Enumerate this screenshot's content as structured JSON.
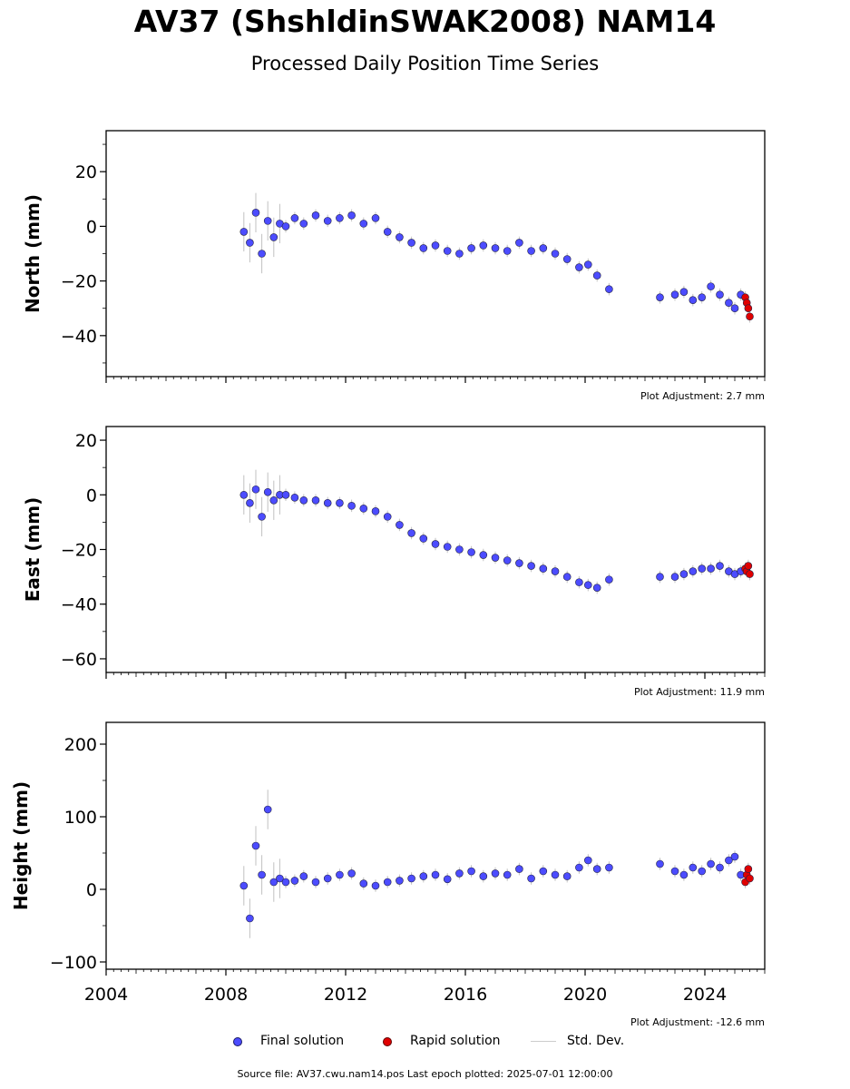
{
  "header": {
    "title": "AV37 (ShshldinSWAK2008) NAM14",
    "subtitle": "Processed Daily Position Time Series"
  },
  "legend": {
    "final": "Final solution",
    "rapid": "Rapid solution",
    "std": "Std. Dev."
  },
  "footer": {
    "source": "Source file: AV37.cwu.nam14.pos  Last epoch plotted: 2025-07-01 12:00:00"
  },
  "colors": {
    "final": "#4c4cff",
    "rapid": "#e00000",
    "std": "#999999"
  },
  "chart_data": [
    {
      "type": "scatter",
      "ylabel": "North (mm)",
      "adjustment": "Plot Adjustment: 2.7 mm",
      "xlim": [
        2004,
        2026
      ],
      "ylim": [
        -55,
        35
      ],
      "yticks": [
        20,
        0,
        -20,
        -40
      ],
      "series": [
        {
          "name": "Final solution",
          "x": [
            2008.6,
            2008.8,
            2009.0,
            2009.2,
            2009.4,
            2009.6,
            2009.8,
            2010.0,
            2010.3,
            2010.6,
            2011.0,
            2011.4,
            2011.8,
            2012.2,
            2012.6,
            2013.0,
            2013.4,
            2013.8,
            2014.2,
            2014.6,
            2015.0,
            2015.4,
            2015.8,
            2016.2,
            2016.6,
            2017.0,
            2017.4,
            2017.8,
            2018.2,
            2018.6,
            2019.0,
            2019.4,
            2019.8,
            2020.1,
            2020.4,
            2020.8,
            2022.5,
            2023.0,
            2023.3,
            2023.6,
            2023.9,
            2024.2,
            2024.5,
            2024.8,
            2025.0,
            2025.2
          ],
          "y": [
            -2,
            -6,
            5,
            -10,
            2,
            -4,
            1,
            0,
            3,
            1,
            4,
            2,
            3,
            4,
            1,
            3,
            -2,
            -4,
            -6,
            -8,
            -7,
            -9,
            -10,
            -8,
            -7,
            -8,
            -9,
            -6,
            -9,
            -8,
            -10,
            -12,
            -15,
            -14,
            -18,
            -23,
            -26,
            -25,
            -24,
            -27,
            -26,
            -22,
            -25,
            -28,
            -30,
            -25
          ]
        },
        {
          "name": "Rapid solution",
          "x": [
            2025.35,
            2025.4,
            2025.45,
            2025.5
          ],
          "y": [
            -26,
            -28,
            -30,
            -33
          ]
        }
      ]
    },
    {
      "type": "scatter",
      "ylabel": "East (mm)",
      "adjustment": "Plot Adjustment: 11.9 mm",
      "xlim": [
        2004,
        2026
      ],
      "ylim": [
        -65,
        25
      ],
      "yticks": [
        20,
        0,
        -20,
        -40,
        -60
      ],
      "series": [
        {
          "name": "Final solution",
          "x": [
            2008.6,
            2008.8,
            2009.0,
            2009.2,
            2009.4,
            2009.6,
            2009.8,
            2010.0,
            2010.3,
            2010.6,
            2011.0,
            2011.4,
            2011.8,
            2012.2,
            2012.6,
            2013.0,
            2013.4,
            2013.8,
            2014.2,
            2014.6,
            2015.0,
            2015.4,
            2015.8,
            2016.2,
            2016.6,
            2017.0,
            2017.4,
            2017.8,
            2018.2,
            2018.6,
            2019.0,
            2019.4,
            2019.8,
            2020.1,
            2020.4,
            2020.8,
            2022.5,
            2023.0,
            2023.3,
            2023.6,
            2023.9,
            2024.2,
            2024.5,
            2024.8,
            2025.0,
            2025.2
          ],
          "y": [
            0,
            -3,
            2,
            -8,
            1,
            -2,
            0,
            0,
            -1,
            -2,
            -2,
            -3,
            -3,
            -4,
            -5,
            -6,
            -8,
            -11,
            -14,
            -16,
            -18,
            -19,
            -20,
            -21,
            -22,
            -23,
            -24,
            -25,
            -26,
            -27,
            -28,
            -30,
            -32,
            -33,
            -34,
            -31,
            -30,
            -30,
            -29,
            -28,
            -27,
            -27,
            -26,
            -28,
            -29,
            -28
          ]
        },
        {
          "name": "Rapid solution",
          "x": [
            2025.35,
            2025.4,
            2025.45,
            2025.5
          ],
          "y": [
            -27,
            -28,
            -26,
            -29
          ]
        }
      ]
    },
    {
      "type": "scatter",
      "ylabel": "Height (mm)",
      "adjustment": "Plot Adjustment: -12.6 mm",
      "xlim": [
        2004,
        2026
      ],
      "ylim": [
        -110,
        230
      ],
      "yticks": [
        200,
        100,
        0,
        -100
      ],
      "xticks": [
        2004,
        2008,
        2012,
        2016,
        2020,
        2024
      ],
      "series": [
        {
          "name": "Final solution",
          "x": [
            2008.6,
            2008.8,
            2009.0,
            2009.2,
            2009.4,
            2009.6,
            2009.8,
            2010.0,
            2010.3,
            2010.6,
            2011.0,
            2011.4,
            2011.8,
            2012.2,
            2012.6,
            2013.0,
            2013.4,
            2013.8,
            2014.2,
            2014.6,
            2015.0,
            2015.4,
            2015.8,
            2016.2,
            2016.6,
            2017.0,
            2017.4,
            2017.8,
            2018.2,
            2018.6,
            2019.0,
            2019.4,
            2019.8,
            2020.1,
            2020.4,
            2020.8,
            2022.5,
            2023.0,
            2023.3,
            2023.6,
            2023.9,
            2024.2,
            2024.5,
            2024.8,
            2025.0,
            2025.2
          ],
          "y": [
            5,
            -40,
            60,
            20,
            110,
            10,
            15,
            10,
            12,
            18,
            10,
            15,
            20,
            22,
            8,
            5,
            10,
            12,
            15,
            18,
            20,
            14,
            22,
            25,
            18,
            22,
            20,
            28,
            15,
            25,
            20,
            18,
            30,
            40,
            28,
            30,
            35,
            25,
            20,
            30,
            25,
            35,
            30,
            40,
            45,
            20
          ]
        },
        {
          "name": "Rapid solution",
          "x": [
            2025.35,
            2025.4,
            2025.45,
            2025.5
          ],
          "y": [
            10,
            20,
            28,
            15
          ]
        }
      ]
    }
  ]
}
